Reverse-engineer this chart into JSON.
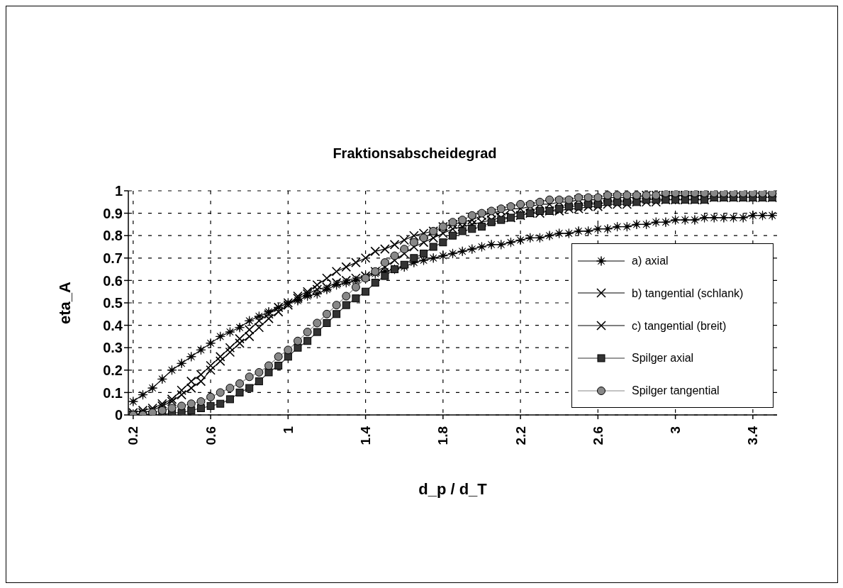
{
  "chart_data": {
    "type": "line",
    "title": "Fraktionsabscheidegrad",
    "xlabel": "d_p / d_T",
    "ylabel": "eta_A",
    "x": [
      0.2,
      0.25,
      0.3,
      0.35,
      0.4,
      0.45,
      0.5,
      0.55,
      0.6,
      0.65,
      0.7,
      0.75,
      0.8,
      0.85,
      0.9,
      0.95,
      1.0,
      1.05,
      1.1,
      1.15,
      1.2,
      1.25,
      1.3,
      1.35,
      1.4,
      1.45,
      1.5,
      1.55,
      1.6,
      1.65,
      1.7,
      1.75,
      1.8,
      1.85,
      1.9,
      1.95,
      2.0,
      2.05,
      2.1,
      2.15,
      2.2,
      2.25,
      2.3,
      2.35,
      2.4,
      2.45,
      2.5,
      2.55,
      2.6,
      2.65,
      2.7,
      2.75,
      2.8,
      2.85,
      2.9,
      2.95,
      3.0,
      3.05,
      3.1,
      3.15,
      3.2,
      3.25,
      3.3,
      3.35,
      3.4,
      3.45,
      3.5
    ],
    "xlim": [
      0.175,
      3.525
    ],
    "xticks": [
      0.2,
      0.6,
      1,
      1.4,
      1.8,
      2.2,
      2.6,
      3,
      3.4
    ],
    "ylim": [
      0,
      1
    ],
    "yticks": [
      0,
      0.1,
      0.2,
      0.3,
      0.4,
      0.5,
      0.6,
      0.7,
      0.8,
      0.9,
      1
    ],
    "grid": true,
    "legend": "right",
    "series": [
      {
        "name": "a) axial",
        "color": "#000000",
        "marker": "star",
        "values": [
          0.06,
          0.09,
          0.12,
          0.16,
          0.2,
          0.23,
          0.26,
          0.29,
          0.32,
          0.35,
          0.37,
          0.39,
          0.42,
          0.44,
          0.46,
          0.48,
          0.5,
          0.51,
          0.53,
          0.54,
          0.56,
          0.58,
          0.59,
          0.6,
          0.62,
          0.63,
          0.64,
          0.65,
          0.66,
          0.68,
          0.69,
          0.7,
          0.71,
          0.72,
          0.73,
          0.74,
          0.75,
          0.76,
          0.76,
          0.77,
          0.78,
          0.79,
          0.79,
          0.8,
          0.81,
          0.81,
          0.82,
          0.82,
          0.83,
          0.83,
          0.84,
          0.84,
          0.85,
          0.85,
          0.86,
          0.86,
          0.87,
          0.87,
          0.87,
          0.88,
          0.88,
          0.88,
          0.88,
          0.88,
          0.89,
          0.89,
          0.89
        ]
      },
      {
        "name": "b) tangential (schlank)",
        "color": "#000000",
        "marker": "cross",
        "values": [
          0.01,
          0.02,
          0.03,
          0.05,
          0.07,
          0.11,
          0.15,
          0.18,
          0.22,
          0.26,
          0.3,
          0.34,
          0.38,
          0.42,
          0.45,
          0.48,
          0.5,
          0.52,
          0.54,
          0.56,
          0.57,
          0.59,
          0.6,
          0.61,
          0.62,
          0.64,
          0.66,
          0.69,
          0.72,
          0.75,
          0.77,
          0.79,
          0.81,
          0.83,
          0.84,
          0.85,
          0.86,
          0.87,
          0.88,
          0.88,
          0.89,
          0.9,
          0.9,
          0.91,
          0.91,
          0.92,
          0.92,
          0.93,
          0.93,
          0.94,
          0.94,
          0.94,
          0.95,
          0.95,
          0.95,
          0.96,
          0.96,
          0.96,
          0.96,
          0.96,
          0.97,
          0.97,
          0.97,
          0.97,
          0.97,
          0.97,
          0.97
        ]
      },
      {
        "name": "c) tangential (breit)",
        "color": "#000000",
        "marker": "cross",
        "values": [
          0.0,
          0.01,
          0.02,
          0.04,
          0.06,
          0.09,
          0.12,
          0.15,
          0.2,
          0.24,
          0.28,
          0.32,
          0.35,
          0.39,
          0.43,
          0.46,
          0.49,
          0.53,
          0.55,
          0.58,
          0.61,
          0.64,
          0.66,
          0.68,
          0.7,
          0.73,
          0.74,
          0.76,
          0.78,
          0.8,
          0.81,
          0.82,
          0.84,
          0.85,
          0.86,
          0.87,
          0.89,
          0.9,
          0.91,
          0.92,
          0.92,
          0.93,
          0.94,
          0.94,
          0.95,
          0.95,
          0.96,
          0.96,
          0.96,
          0.97,
          0.97,
          0.97,
          0.97,
          0.98,
          0.98,
          0.98,
          0.98,
          0.98,
          0.98,
          0.98,
          0.99,
          0.99,
          0.99,
          0.99,
          0.99,
          0.99,
          0.99
        ]
      },
      {
        "name": "Spilger axial",
        "color": "#333333",
        "marker": "square",
        "values": [
          0.0,
          0.0,
          0.0,
          0.0,
          0.01,
          0.01,
          0.02,
          0.03,
          0.04,
          0.05,
          0.07,
          0.1,
          0.12,
          0.15,
          0.19,
          0.22,
          0.26,
          0.3,
          0.33,
          0.37,
          0.41,
          0.45,
          0.49,
          0.52,
          0.55,
          0.59,
          0.62,
          0.65,
          0.67,
          0.7,
          0.72,
          0.75,
          0.77,
          0.8,
          0.82,
          0.83,
          0.84,
          0.86,
          0.87,
          0.88,
          0.89,
          0.9,
          0.91,
          0.91,
          0.92,
          0.93,
          0.93,
          0.94,
          0.94,
          0.95,
          0.95,
          0.95,
          0.95,
          0.96,
          0.96,
          0.96,
          0.96,
          0.96,
          0.96,
          0.96,
          0.97,
          0.97,
          0.97,
          0.97,
          0.97,
          0.97,
          0.97
        ]
      },
      {
        "name": "Spilger tangential",
        "color": "#888888",
        "marker": "circle",
        "values": [
          0.0,
          0.0,
          0.01,
          0.02,
          0.03,
          0.04,
          0.05,
          0.06,
          0.08,
          0.1,
          0.12,
          0.14,
          0.17,
          0.19,
          0.22,
          0.26,
          0.29,
          0.33,
          0.37,
          0.41,
          0.45,
          0.49,
          0.53,
          0.57,
          0.61,
          0.64,
          0.68,
          0.71,
          0.74,
          0.77,
          0.79,
          0.82,
          0.84,
          0.86,
          0.87,
          0.89,
          0.9,
          0.91,
          0.92,
          0.93,
          0.94,
          0.94,
          0.95,
          0.96,
          0.96,
          0.96,
          0.97,
          0.97,
          0.97,
          0.98,
          0.98,
          0.98,
          0.98,
          0.98,
          0.98,
          0.99,
          0.99,
          0.99,
          0.99,
          0.99,
          0.99,
          0.99,
          0.99,
          0.99,
          0.99,
          0.99,
          0.99
        ]
      }
    ]
  }
}
